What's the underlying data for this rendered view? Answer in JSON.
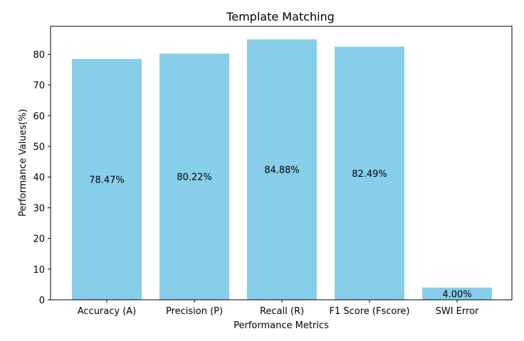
{
  "chart_data": {
    "type": "bar",
    "title": "Template Matching",
    "xlabel": "Performance Metrics",
    "ylabel": "Performance Values(%)",
    "categories": [
      "Accuracy (A)",
      "Precision (P)",
      "Recall (R)",
      "F1 Score (Fscore)",
      "SWI Error"
    ],
    "values": [
      78.47,
      80.22,
      84.88,
      82.49,
      4.0
    ],
    "data_labels": [
      "78.47%",
      "80.22%",
      "84.88%",
      "82.49%",
      "4.00%"
    ],
    "ylim": [
      0,
      89.124
    ],
    "yticks": [
      0,
      10,
      20,
      30,
      40,
      50,
      60,
      70,
      80
    ],
    "bar_color": "#87ceeb",
    "grid": false
  }
}
